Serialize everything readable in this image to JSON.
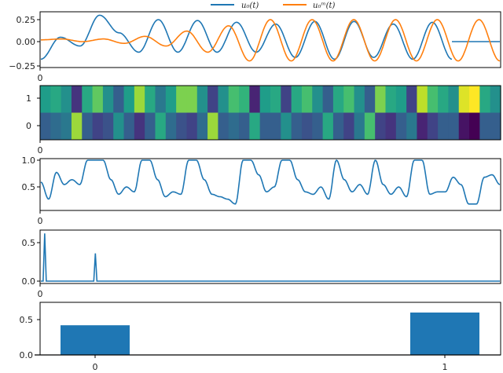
{
  "colors": {
    "blue": "#1f77b4",
    "orange": "#ff7f0e",
    "axis": "#000000"
  },
  "legend": {
    "entries": [
      {
        "label": "u₀(t)",
        "color": "#1f77b4"
      },
      {
        "label": "u₀ᵐ(t)",
        "color": "#ff7f0e"
      }
    ]
  },
  "chart_data": [
    {
      "type": "line",
      "title": "",
      "panel": 1,
      "xlabel": "",
      "ylabel": "",
      "x_tick_labels": [
        "0"
      ],
      "y_tick_labels": [
        "0.25",
        "0.00",
        "−0.25"
      ],
      "ylim": [
        -0.25,
        0.3
      ],
      "legend_position": "top center (outside)",
      "series": [
        {
          "name": "u0(t)",
          "color": "#1f77b4",
          "description": "oscillation amplitude ~0.25, ~9.5 cycles, becomes flat at ~0.0 after ~90% of x range",
          "values": [
            -0.2,
            0.05,
            -0.05,
            0.3,
            0.1,
            -0.12,
            0.25,
            -0.12,
            0.24,
            -0.12,
            0.22,
            -0.12,
            0.2,
            -0.18,
            0.23,
            -0.2,
            0.23,
            -0.18,
            0.2,
            -0.2,
            0.22,
            -0.2,
            0.0,
            0.0,
            0.0
          ]
        },
        {
          "name": "u0^m(t)",
          "color": "#ff7f0e",
          "description": "small oscillation growing to amplitude ~0.25 over time",
          "values": [
            0.02,
            0.03,
            0.0,
            0.03,
            -0.02,
            0.06,
            -0.05,
            0.12,
            -0.12,
            0.18,
            -0.22,
            0.25,
            -0.22,
            0.25,
            -0.22,
            0.25,
            -0.22,
            0.25,
            -0.22,
            0.25,
            -0.22,
            0.25,
            -0.22
          ]
        }
      ]
    },
    {
      "type": "heatmap",
      "panel": 2,
      "colormap": "viridis",
      "rows": [
        "1",
        "0"
      ],
      "x_tick_labels": [
        "0"
      ],
      "y_tick_labels": [
        "1",
        "0"
      ],
      "row_1_values": [
        0.55,
        0.6,
        0.5,
        0.15,
        0.6,
        0.75,
        0.5,
        0.3,
        0.55,
        0.85,
        0.6,
        0.4,
        0.55,
        0.8,
        0.8,
        0.5,
        0.2,
        0.5,
        0.7,
        0.65,
        0.1,
        0.55,
        0.6,
        0.2,
        0.6,
        0.7,
        0.5,
        0.3,
        0.6,
        0.7,
        0.5,
        0.3,
        0.8,
        0.6,
        0.55,
        0.2,
        0.9,
        0.7,
        0.6,
        0.5,
        0.95,
        1.0,
        0.6,
        0.5
      ],
      "row_0_values": [
        0.3,
        0.35,
        0.4,
        0.85,
        0.3,
        0.2,
        0.25,
        0.5,
        0.3,
        0.15,
        0.3,
        0.6,
        0.35,
        0.25,
        0.2,
        0.35,
        0.85,
        0.3,
        0.35,
        0.3,
        0.6,
        0.3,
        0.3,
        0.5,
        0.3,
        0.25,
        0.3,
        0.6,
        0.3,
        0.2,
        0.4,
        0.7,
        0.2,
        0.15,
        0.3,
        0.4,
        0.1,
        0.2,
        0.3,
        0.3,
        0.05,
        0.0,
        0.3,
        0.3
      ]
    },
    {
      "type": "line",
      "panel": 3,
      "color": "#1f77b4",
      "x_tick_labels": [
        "0"
      ],
      "y_tick_labels": [
        "1.0",
        "0.5"
      ],
      "ylim": [
        0.0,
        1.0
      ],
      "values": [
        0.55,
        0.2,
        0.75,
        0.5,
        0.6,
        0.5,
        1.0,
        1.0,
        1.0,
        0.6,
        0.3,
        0.45,
        0.35,
        1.0,
        1.0,
        0.6,
        0.25,
        0.35,
        0.3,
        1.0,
        1.0,
        0.6,
        0.3,
        0.25,
        0.2,
        0.1,
        1.0,
        1.0,
        0.7,
        0.35,
        0.45,
        1.0,
        1.0,
        0.6,
        0.35,
        0.3,
        0.45,
        0.2,
        1.0,
        0.6,
        0.35,
        0.5,
        0.3,
        1.0,
        0.5,
        0.3,
        0.45,
        0.25,
        1.0,
        1.0,
        0.3,
        0.35,
        0.35,
        0.65,
        0.5,
        0.1,
        0.1,
        0.65,
        0.7,
        0.5
      ]
    },
    {
      "type": "line",
      "panel": 4,
      "color": "#1f77b4",
      "x_tick_labels": [
        "0"
      ],
      "y_tick_labels": [
        "0.5",
        "0.0"
      ],
      "ylim": [
        0.0,
        0.65
      ],
      "peaks": [
        {
          "x_frac": 0.01,
          "value": 0.62
        },
        {
          "x_frac": 0.12,
          "value": 0.36
        }
      ],
      "baseline": 0.0
    },
    {
      "type": "bar",
      "panel": 5,
      "color": "#1f77b4",
      "categories": [
        "0",
        "1"
      ],
      "values": [
        0.42,
        0.6
      ],
      "x_tick_labels": [
        "0",
        "1"
      ],
      "y_tick_labels": [
        "0.5",
        "0.0"
      ],
      "top_label": "0",
      "ylim": [
        0.0,
        0.63
      ]
    }
  ],
  "axes_labels": {
    "p1_top": "0",
    "p2_top": "0",
    "p3_top": "0",
    "p4_top": "0",
    "p5_top": "0",
    "p1_y": [
      "0.25",
      "0.00",
      "−0.25"
    ],
    "p2_y": [
      "1",
      "0"
    ],
    "p3_y": [
      "1.0",
      "0.5"
    ],
    "p4_y": [
      "0.5",
      "0.0"
    ],
    "p5_y": [
      "0.5",
      "0.0"
    ],
    "p5_x": [
      "0",
      "1"
    ]
  }
}
